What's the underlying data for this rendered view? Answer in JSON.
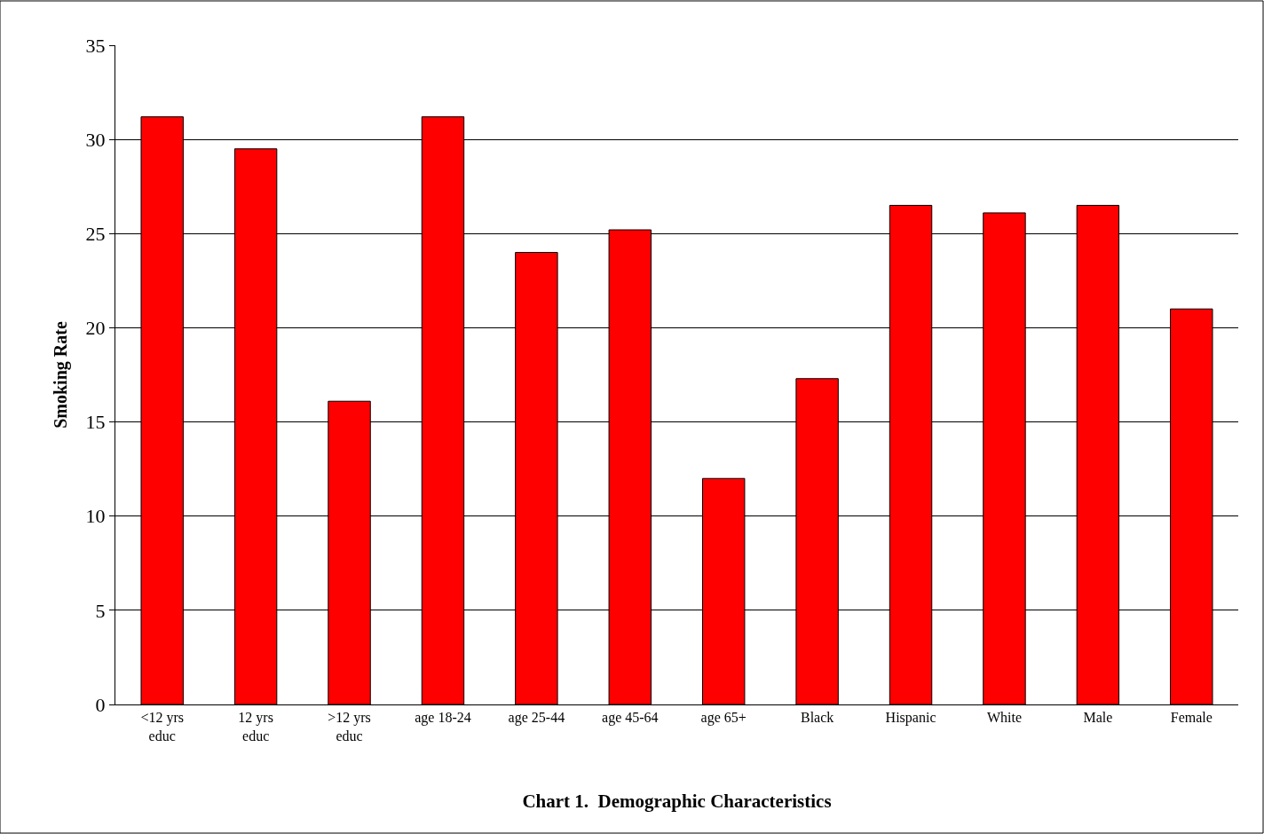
{
  "chart_data": {
    "type": "bar",
    "title": "Chart 1.  Demographic Characteristics",
    "ylabel": "Smoking Rate",
    "categories": [
      "<12 yrs educ",
      "12 yrs educ",
      ">12 yrs educ",
      "age 18-24",
      "age 25-44",
      "age 45-64",
      "age 65+",
      "Black",
      "Hispanic",
      "White",
      "Male",
      "Female"
    ],
    "values": [
      31.2,
      29.5,
      16.1,
      31.2,
      24.0,
      25.2,
      12.0,
      17.3,
      26.5,
      26.1,
      26.5,
      21.0
    ],
    "color": "#ff0000",
    "ylim": [
      0,
      35
    ],
    "yticks": [
      0,
      5,
      10,
      15,
      20,
      25,
      30,
      35
    ],
    "grid": "y",
    "legend": false
  }
}
